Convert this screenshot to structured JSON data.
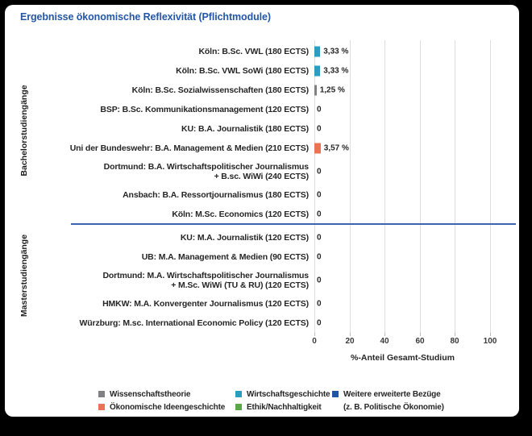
{
  "title": "Ergebnisse ökonomische Reflexivität (Pflichtmodule)",
  "style": {
    "title_color": "#2457a5",
    "separator_color": "#3c64ae",
    "gridline_color": "#dedede",
    "card_background": "#ffffff",
    "frame_background": "#000000"
  },
  "chart_data": {
    "type": "bar",
    "orientation": "horizontal",
    "title": "Ergebnisse ökonomische Reflexivität (Pflichtmodule)",
    "xlabel": "%-Anteil Gesamt-Studium",
    "xlim": [
      0,
      100
    ],
    "xticks": [
      "0",
      "20",
      "40",
      "60",
      "80",
      "100"
    ],
    "grid": "vertical-only",
    "legend_position": "bottom",
    "legend": [
      {
        "label": "Wissenschaftstheorie",
        "color": "#7f8184"
      },
      {
        "label": "Ökonomische Ideengeschichte",
        "color": "#ec7156"
      },
      {
        "label": "Wirtschaftsgeschichte",
        "color": "#2a9ebc"
      },
      {
        "label": "Ethik/Nachhaltigkeit",
        "color": "#5aa746"
      },
      {
        "label": "Weitere erweiterte Bezüge",
        "label2": "(z. B. Politische Ökonomie)",
        "color": "#1f55a4"
      }
    ],
    "groups": [
      {
        "name": "Bachelorstudiengänge",
        "rows": [
          {
            "label": "Köln: B.Sc. VWL (180 ECTS)",
            "value": 3.33,
            "display": "3,33 %",
            "series": "Wirtschaftsgeschichte",
            "color": "#2a9ebc"
          },
          {
            "label": "Köln: B.Sc. VWL SoWi (180 ECTS)",
            "value": 3.33,
            "display": "3,33 %",
            "series": "Wirtschaftsgeschichte",
            "color": "#2a9ebc"
          },
          {
            "label": "Köln: B.Sc. Sozialwissenschaften (180 ECTS)",
            "value": 1.25,
            "display": "1,25 %",
            "series": "Wissenschaftstheorie",
            "color": "#7f8184"
          },
          {
            "label": "BSP: B.Sc. Kommunikationsmanagement (120 ECTS)",
            "value": 0,
            "display": "0",
            "series": null,
            "color": null
          },
          {
            "label": "KU: B.A. Journalistik (180 ECTS)",
            "value": 0,
            "display": "0",
            "series": null,
            "color": null
          },
          {
            "label": "Uni der Bundeswehr: B.A. Management & Medien (210 ECTS)",
            "value": 3.57,
            "display": "3,57 %",
            "series": "Ökonomische Ideengeschichte",
            "color": "#ec7156"
          },
          {
            "label": "Dortmund: B.A. Wirtschaftspolitischer Journalismus\n+ B.sc. WiWi (240 ECTS)",
            "value": 0,
            "display": "0",
            "series": null,
            "color": null
          },
          {
            "label": "Ansbach: B.A. Ressortjournalismus (180 ECTS)",
            "value": 0,
            "display": "0",
            "series": null,
            "color": null
          },
          {
            "label": "Köln: M.Sc. Economics (120 ECTS)",
            "value": 0,
            "display": "0",
            "series": null,
            "color": null
          }
        ]
      },
      {
        "name": "Masterstudiengänge",
        "rows": [
          {
            "label": "KU: M.A. Journalistik (120 ECTS)",
            "value": 0,
            "display": "0",
            "series": null,
            "color": null
          },
          {
            "label": "UB: M.A. Management & Medien (90 ECTS)",
            "value": 0,
            "display": "0",
            "series": null,
            "color": null
          },
          {
            "label": "Dortmund: M.A. Wirtschaftspolitischer Journalismus\n+ M.Sc. WiWi (TU & RU) (120 ECTS)",
            "value": 0,
            "display": "0",
            "series": null,
            "color": null
          },
          {
            "label": "HMKW: M.A. Konvergenter Journalismus (120 ECTS)",
            "value": 0,
            "display": "0",
            "series": null,
            "color": null
          },
          {
            "label": "Würzburg: M.sc. International Economic Policy (120 ECTS)",
            "value": 0,
            "display": "0",
            "series": null,
            "color": null
          }
        ]
      }
    ]
  }
}
